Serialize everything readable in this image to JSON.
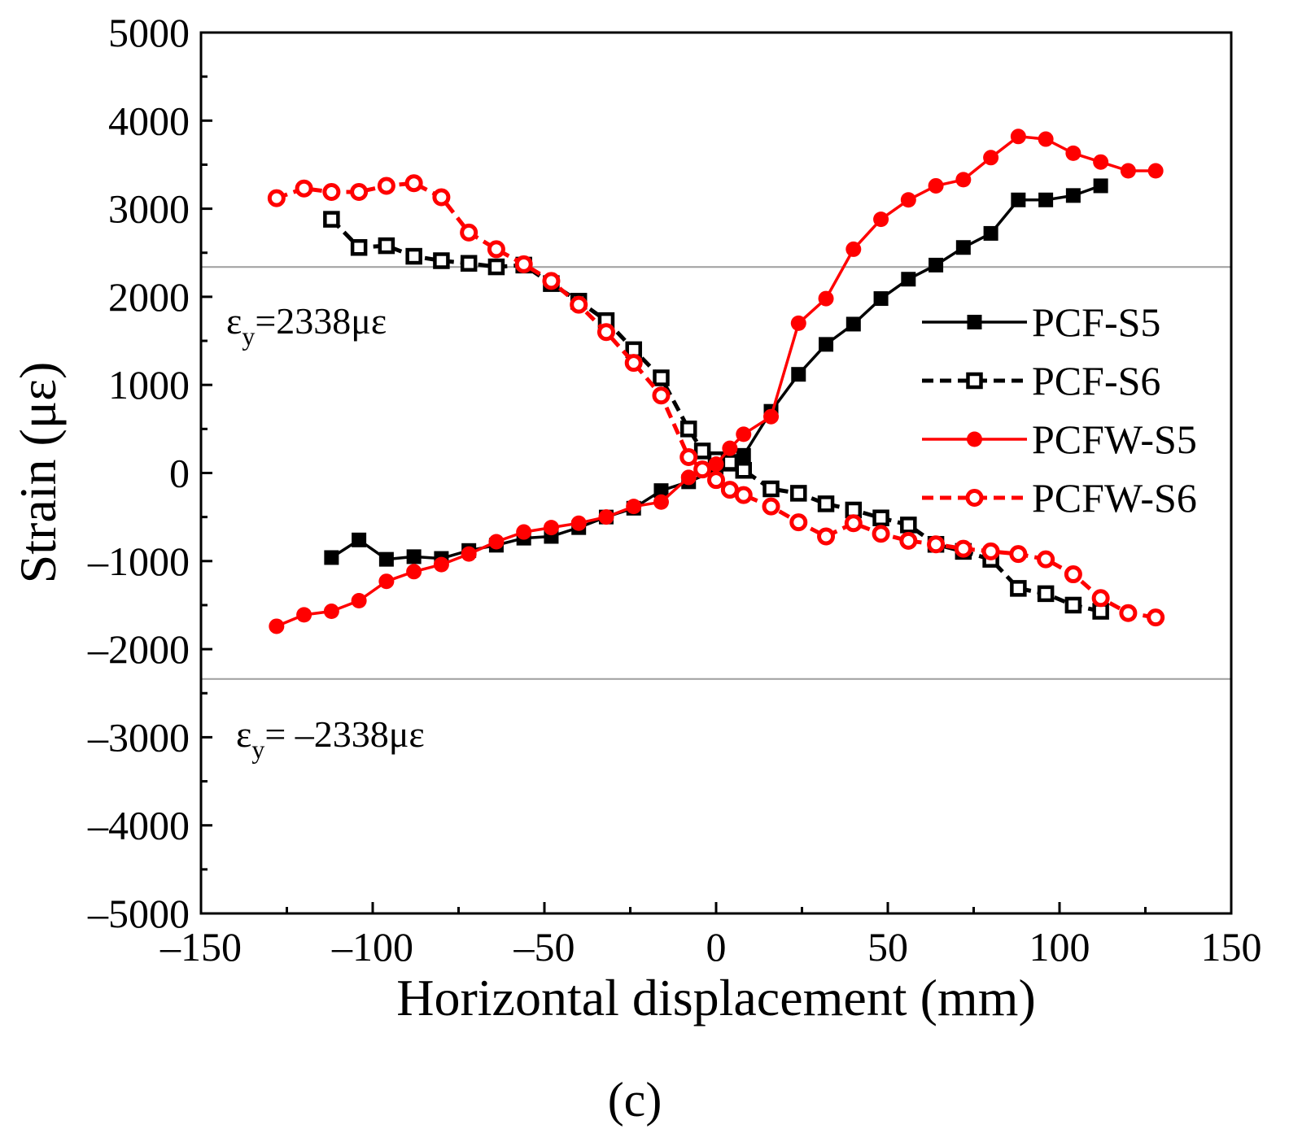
{
  "chart_data": {
    "type": "line",
    "xlabel": "Horizontal displacement (mm)",
    "ylabel": "Strain (με)",
    "xlim": [
      -150,
      150
    ],
    "ylim": [
      -5000,
      5000
    ],
    "x_ticks": [
      -150,
      -100,
      -50,
      0,
      50,
      100,
      150
    ],
    "y_ticks": [
      -5000,
      -4000,
      -3000,
      -2000,
      -1000,
      0,
      1000,
      2000,
      3000,
      4000,
      5000
    ],
    "x_tick_labels": [
      "–150",
      "–100",
      "–50",
      "0",
      "50",
      "100",
      "150"
    ],
    "y_tick_labels": [
      "–5000",
      "–4000",
      "–3000",
      "–2000",
      "–1000",
      "0",
      "1000",
      "2000",
      "3000",
      "4000",
      "5000"
    ],
    "grid": false,
    "legend_position": "right",
    "panel_label": "(c)",
    "reference_lines": [
      {
        "y": 2338,
        "label_main": "ε",
        "label_sub": "y",
        "label_rest": "=2338με",
        "color": "#9e9e9e"
      },
      {
        "y": -2338,
        "label_main": "ε",
        "label_sub": "y",
        "label_rest": "= –2338με",
        "color": "#9e9e9e"
      }
    ],
    "series": [
      {
        "name": "PCF-S5",
        "color": "#000000",
        "line": "solid",
        "marker": "square-filled",
        "points": [
          [
            -112,
            -960
          ],
          [
            -104,
            -760
          ],
          [
            -96,
            -980
          ],
          [
            -88,
            -950
          ],
          [
            -80,
            -970
          ],
          [
            -72,
            -880
          ],
          [
            -64,
            -820
          ],
          [
            -56,
            -740
          ],
          [
            -48,
            -720
          ],
          [
            -40,
            -620
          ],
          [
            -32,
            -500
          ],
          [
            -24,
            -400
          ],
          [
            -16,
            -200
          ],
          [
            -8,
            -100
          ],
          [
            0,
            30
          ],
          [
            4,
            100
          ],
          [
            8,
            200
          ],
          [
            16,
            700
          ],
          [
            24,
            1120
          ],
          [
            32,
            1460
          ],
          [
            40,
            1690
          ],
          [
            48,
            1980
          ],
          [
            56,
            2200
          ],
          [
            64,
            2360
          ],
          [
            72,
            2560
          ],
          [
            80,
            2720
          ],
          [
            88,
            3100
          ],
          [
            96,
            3100
          ],
          [
            104,
            3150
          ],
          [
            112,
            3260
          ]
        ]
      },
      {
        "name": "PCF-S6",
        "color": "#000000",
        "line": "dashed",
        "marker": "square-open",
        "points": [
          [
            -112,
            2880
          ],
          [
            -104,
            2560
          ],
          [
            -96,
            2580
          ],
          [
            -88,
            2460
          ],
          [
            -80,
            2410
          ],
          [
            -72,
            2380
          ],
          [
            -64,
            2340
          ],
          [
            -56,
            2360
          ],
          [
            -48,
            2150
          ],
          [
            -40,
            1950
          ],
          [
            -32,
            1730
          ],
          [
            -24,
            1400
          ],
          [
            -16,
            1080
          ],
          [
            -8,
            500
          ],
          [
            -4,
            250
          ],
          [
            0,
            150
          ],
          [
            4,
            120
          ],
          [
            8,
            30
          ],
          [
            16,
            -180
          ],
          [
            24,
            -230
          ],
          [
            32,
            -350
          ],
          [
            40,
            -420
          ],
          [
            48,
            -510
          ],
          [
            56,
            -590
          ],
          [
            64,
            -810
          ],
          [
            72,
            -890
          ],
          [
            80,
            -980
          ],
          [
            88,
            -1310
          ],
          [
            96,
            -1370
          ],
          [
            104,
            -1500
          ],
          [
            112,
            -1570
          ]
        ]
      },
      {
        "name": "PCFW-S5",
        "color": "#ff0000",
        "line": "solid",
        "marker": "circle-filled",
        "points": [
          [
            -128,
            -1740
          ],
          [
            -120,
            -1610
          ],
          [
            -112,
            -1570
          ],
          [
            -104,
            -1450
          ],
          [
            -96,
            -1230
          ],
          [
            -88,
            -1120
          ],
          [
            -80,
            -1040
          ],
          [
            -72,
            -920
          ],
          [
            -64,
            -780
          ],
          [
            -56,
            -670
          ],
          [
            -48,
            -620
          ],
          [
            -40,
            -570
          ],
          [
            -32,
            -500
          ],
          [
            -24,
            -380
          ],
          [
            -16,
            -330
          ],
          [
            -8,
            -50
          ],
          [
            0,
            100
          ],
          [
            4,
            280
          ],
          [
            8,
            440
          ],
          [
            16,
            640
          ],
          [
            24,
            1700
          ],
          [
            32,
            1980
          ],
          [
            40,
            2540
          ],
          [
            48,
            2880
          ],
          [
            56,
            3100
          ],
          [
            64,
            3260
          ],
          [
            72,
            3330
          ],
          [
            80,
            3580
          ],
          [
            88,
            3820
          ],
          [
            96,
            3790
          ],
          [
            104,
            3630
          ],
          [
            112,
            3530
          ],
          [
            120,
            3430
          ],
          [
            128,
            3430
          ]
        ]
      },
      {
        "name": "PCFW-S6",
        "color": "#ff0000",
        "line": "dashed",
        "marker": "circle-open",
        "points": [
          [
            -128,
            3120
          ],
          [
            -120,
            3230
          ],
          [
            -112,
            3190
          ],
          [
            -104,
            3190
          ],
          [
            -96,
            3260
          ],
          [
            -88,
            3290
          ],
          [
            -80,
            3130
          ],
          [
            -72,
            2730
          ],
          [
            -64,
            2540
          ],
          [
            -56,
            2370
          ],
          [
            -48,
            2180
          ],
          [
            -40,
            1910
          ],
          [
            -32,
            1600
          ],
          [
            -24,
            1250
          ],
          [
            -16,
            880
          ],
          [
            -8,
            180
          ],
          [
            -4,
            40
          ],
          [
            0,
            -80
          ],
          [
            4,
            -190
          ],
          [
            8,
            -250
          ],
          [
            16,
            -380
          ],
          [
            24,
            -560
          ],
          [
            32,
            -720
          ],
          [
            40,
            -570
          ],
          [
            48,
            -690
          ],
          [
            56,
            -770
          ],
          [
            64,
            -810
          ],
          [
            72,
            -860
          ],
          [
            80,
            -890
          ],
          [
            88,
            -920
          ],
          [
            96,
            -980
          ],
          [
            104,
            -1150
          ],
          [
            112,
            -1420
          ],
          [
            120,
            -1590
          ],
          [
            128,
            -1640
          ]
        ]
      }
    ]
  }
}
